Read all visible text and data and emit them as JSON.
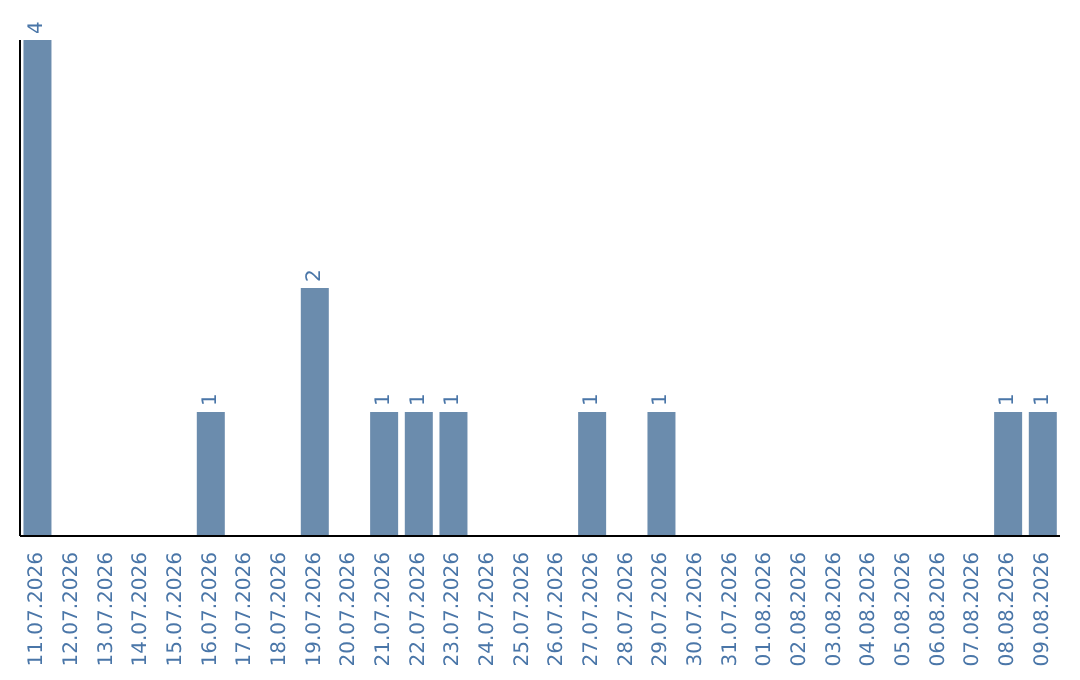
{
  "chart_data": {
    "type": "bar",
    "categories": [
      "11.07.2026",
      "12.07.2026",
      "13.07.2026",
      "14.07.2026",
      "15.07.2026",
      "16.07.2026",
      "17.07.2026",
      "18.07.2026",
      "19.07.2026",
      "20.07.2026",
      "21.07.2026",
      "22.07.2026",
      "23.07.2026",
      "24.07.2026",
      "25.07.2026",
      "26.07.2026",
      "27.07.2026",
      "28.07.2026",
      "29.07.2026",
      "30.07.2026",
      "31.07.2026",
      "01.08.2026",
      "02.08.2026",
      "03.08.2026",
      "04.08.2026",
      "05.08.2026",
      "06.08.2026",
      "07.08.2026",
      "08.08.2026",
      "09.08.2026"
    ],
    "values": [
      4,
      0,
      0,
      0,
      0,
      1,
      0,
      0,
      2,
      0,
      1,
      1,
      1,
      0,
      0,
      0,
      1,
      0,
      1,
      0,
      0,
      0,
      0,
      0,
      0,
      0,
      0,
      0,
      1,
      1
    ],
    "value_labels": [
      "4",
      null,
      null,
      null,
      null,
      "1",
      null,
      null,
      "2",
      null,
      "1",
      "1",
      "1",
      null,
      null,
      null,
      "1",
      null,
      "1",
      null,
      null,
      null,
      null,
      null,
      null,
      null,
      null,
      null,
      "1",
      "1"
    ],
    "color": "#6b8cad"
  }
}
